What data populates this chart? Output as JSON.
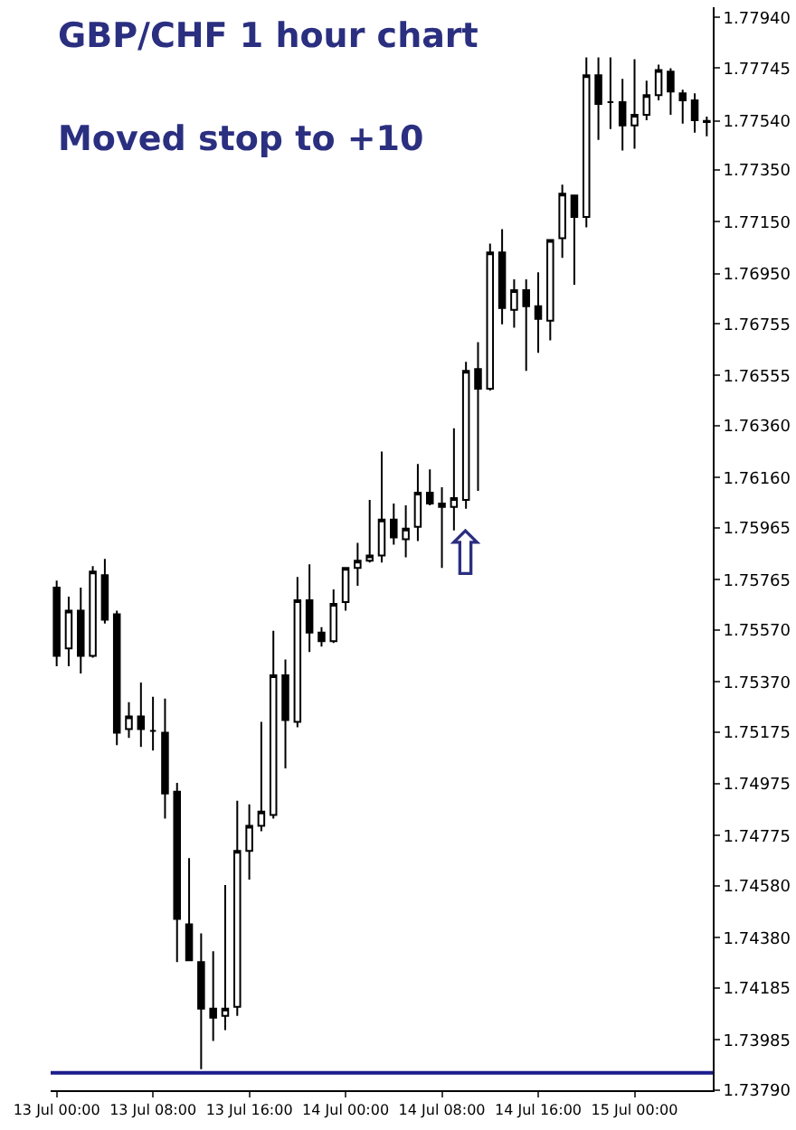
{
  "chart_data": {
    "type": "candlestick",
    "title": "GBP/CHF 1 hour chart",
    "subtitle": "Moved stop to +10",
    "categories": [
      "13 Jul 00:00",
      null,
      null,
      null,
      null,
      null,
      null,
      null,
      "13 Jul 08:00",
      null,
      null,
      null,
      null,
      null,
      null,
      null,
      "13 Jul 16:00",
      null,
      null,
      null,
      null,
      null,
      null,
      null,
      "14 Jul 00:00",
      null,
      null,
      null,
      null,
      null,
      null,
      null,
      "14 Jul 08:00",
      null,
      null,
      null,
      null,
      null,
      null,
      null,
      "14 Jul 16:00",
      null,
      null,
      null,
      null,
      null,
      null,
      null,
      "15 Jul 00:00",
      null,
      null,
      null,
      null,
      null,
      null
    ],
    "ohlc": [
      [
        1.75735,
        1.75762,
        1.7543,
        1.75471
      ],
      [
        1.75499,
        1.757,
        1.7543,
        1.75645
      ],
      [
        1.75645,
        1.75735,
        1.75402,
        1.75471
      ],
      [
        1.75471,
        1.75818,
        1.75464,
        1.75797
      ],
      [
        1.75783,
        1.75846,
        1.75596,
        1.7561
      ],
      [
        1.75631,
        1.75645,
        1.75125,
        1.75173
      ],
      [
        1.75187,
        1.75291,
        1.75153,
        1.75236
      ],
      [
        1.75236,
        1.75367,
        1.75118,
        1.75187
      ],
      [
        1.7518,
        1.75312,
        1.75104,
        1.7518
      ],
      [
        1.75173,
        1.75305,
        1.74841,
        1.74938
      ],
      [
        1.74945,
        1.74979,
        1.74286,
        1.74453
      ],
      [
        1.74432,
        1.74688,
        1.74293,
        1.74293
      ],
      [
        1.74286,
        1.74397,
        1.73871,
        1.74106
      ],
      [
        1.74106,
        1.74328,
        1.73981,
        1.74071
      ],
      [
        1.74078,
        1.74584,
        1.74023,
        1.74106
      ],
      [
        1.74113,
        1.7491,
        1.74078,
        1.74716
      ],
      [
        1.74716,
        1.74896,
        1.74605,
        1.74813
      ],
      [
        1.74813,
        1.75215,
        1.74792,
        1.74868
      ],
      [
        1.74855,
        1.75568,
        1.74841,
        1.75395
      ],
      [
        1.75395,
        1.75457,
        1.75035,
        1.75222
      ],
      [
        1.75215,
        1.75776,
        1.75194,
        1.75686
      ],
      [
        1.75686,
        1.75825,
        1.75485,
        1.75561
      ],
      [
        1.75561,
        1.75582,
        1.75506,
        1.75527
      ],
      [
        1.75527,
        1.75728,
        1.7552,
        1.75672
      ],
      [
        1.75679,
        1.75811,
        1.75645,
        1.75811
      ],
      [
        1.75811,
        1.75908,
        1.75742,
        1.75839
      ],
      [
        1.75839,
        1.76074,
        1.75832,
        1.75859
      ],
      [
        1.75859,
        1.76261,
        1.75832,
        1.75998
      ],
      [
        1.75998,
        1.7606,
        1.75901,
        1.75929
      ],
      [
        1.75922,
        1.76053,
        1.75852,
        1.75963
      ],
      [
        1.7597,
        1.76213,
        1.75915,
        1.76102
      ],
      [
        1.76102,
        1.76192,
        1.76053,
        1.7606
      ],
      [
        1.7606,
        1.76123,
        1.75811,
        1.76047
      ],
      [
        1.76047,
        1.76351,
        1.75956,
        1.76081
      ],
      [
        1.76074,
        1.76608,
        1.7604,
        1.76573
      ],
      [
        1.7658,
        1.76684,
        1.76109,
        1.76504
      ],
      [
        1.76504,
        1.77065,
        1.76497,
        1.77031
      ],
      [
        1.77031,
        1.77121,
        1.76753,
        1.76816
      ],
      [
        1.76809,
        1.76927,
        1.7674,
        1.76885
      ],
      [
        1.76885,
        1.76927,
        1.76573,
        1.76823
      ],
      [
        1.76823,
        1.76954,
        1.76643,
        1.76774
      ],
      [
        1.76767,
        1.77079,
        1.76691,
        1.77079
      ],
      [
        1.77086,
        1.77294,
        1.7701,
        1.77259
      ],
      [
        1.77252,
        1.77252,
        1.76906,
        1.77169
      ],
      [
        1.77169,
        1.77786,
        1.77128,
        1.77717
      ],
      [
        1.77717,
        1.77786,
        1.77467,
        1.77606
      ],
      [
        1.77613,
        1.77786,
        1.77509,
        1.77613
      ],
      [
        1.77613,
        1.77703,
        1.77426,
        1.77523
      ],
      [
        1.77523,
        1.77779,
        1.77433,
        1.77564
      ],
      [
        1.77564,
        1.77696,
        1.77543,
        1.7764
      ],
      [
        1.7764,
        1.77758,
        1.7762,
        1.77737
      ],
      [
        1.77731,
        1.77744,
        1.77564,
        1.77654
      ],
      [
        1.77647,
        1.77661,
        1.7753,
        1.7762
      ],
      [
        1.7762,
        1.77647,
        1.77495,
        1.77543
      ],
      [
        1.7754,
        1.77557,
        1.77481,
        1.77536
      ]
    ],
    "ylim": [
      1.7379,
      1.7798
    ],
    "yticks": [
      {
        "value": 1.7794,
        "label": "1.77940"
      },
      {
        "value": 1.77745,
        "label": "1.77745"
      },
      {
        "value": 1.7754,
        "label": "1.77540"
      },
      {
        "value": 1.7735,
        "label": "1.77350"
      },
      {
        "value": 1.7715,
        "label": "1.77150"
      },
      {
        "value": 1.7695,
        "label": "1.76950"
      },
      {
        "value": 1.76755,
        "label": "1.76755"
      },
      {
        "value": 1.76555,
        "label": "1.76555"
      },
      {
        "value": 1.7636,
        "label": "1.76360"
      },
      {
        "value": 1.7616,
        "label": "1.76160"
      },
      {
        "value": 1.75965,
        "label": "1.75965"
      },
      {
        "value": 1.75765,
        "label": "1.75765"
      },
      {
        "value": 1.7557,
        "label": "1.75570"
      },
      {
        "value": 1.7537,
        "label": "1.75370"
      },
      {
        "value": 1.75175,
        "label": "1.75175"
      },
      {
        "value": 1.74975,
        "label": "1.74975"
      },
      {
        "value": 1.74775,
        "label": "1.74775"
      },
      {
        "value": 1.7458,
        "label": "1.74580"
      },
      {
        "value": 1.7438,
        "label": "1.74380"
      },
      {
        "value": 1.74185,
        "label": "1.74185"
      },
      {
        "value": 1.73985,
        "label": "1.73985"
      },
      {
        "value": 1.7379,
        "label": "1.73790"
      }
    ],
    "ref_lines": [
      {
        "axis": "y",
        "value": 1.73857,
        "color": "#1c1c8c"
      }
    ],
    "annotations": [
      "⇧"
    ]
  }
}
